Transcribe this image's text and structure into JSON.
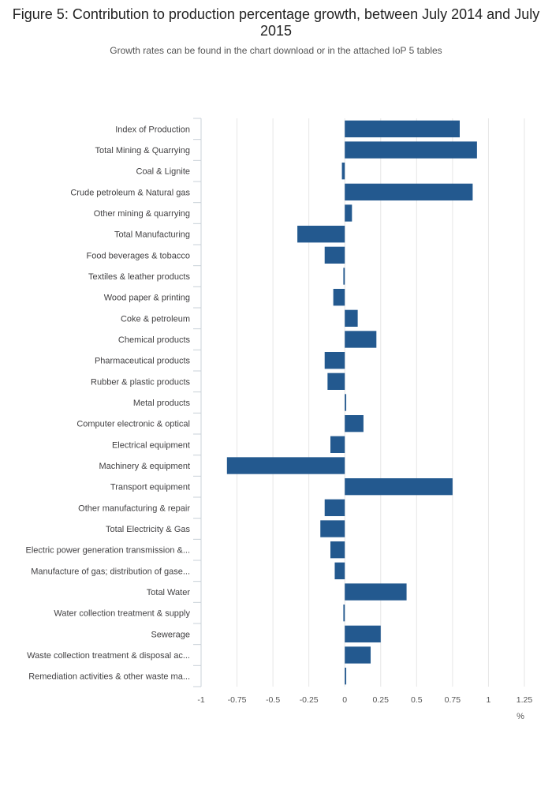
{
  "chart_data": {
    "type": "bar",
    "orientation": "horizontal",
    "title": "Figure 5: Contribution to production percentage growth, between July 2014 and July 2015",
    "subtitle": "Growth rates can be found in the chart download or in the attached IoP 5 tables",
    "xlabel": "%",
    "ylabel": "",
    "xlim": [
      -1,
      1.25
    ],
    "xticks": [
      -1,
      -0.75,
      -0.5,
      -0.25,
      0,
      0.25,
      0.5,
      0.75,
      1,
      1.25
    ],
    "xtick_labels": [
      "-1",
      "-0.75",
      "-0.5",
      "-0.25",
      "0",
      "0.25",
      "0.5",
      "0.75",
      "1",
      "1.25"
    ],
    "grid": true,
    "bar_color": "#23598f",
    "categories": [
      "Index of Production",
      "Total Mining & Quarrying",
      "Coal & Lignite",
      "Crude petroleum & Natural gas",
      "Other mining & quarrying",
      "Total Manufacturing",
      "Food beverages & tobacco",
      "Textiles & leather products",
      "Wood paper & printing",
      "Coke & petroleum",
      "Chemical products",
      "Pharmaceutical products",
      "Rubber & plastic products",
      "Metal products",
      "Computer electronic & optical",
      "Electrical equipment",
      "Machinery & equipment",
      "Transport equipment",
      "Other manufacturing & repair",
      "Total Electricity & Gas",
      "Electric power generation transmission &...",
      "Manufacture of gas; distribution of gase...",
      "Total Water",
      "Water collection treatment & supply",
      "Sewerage",
      "Waste collection treatment & disposal ac...",
      "Remediation activities & other waste ma..."
    ],
    "values": [
      0.8,
      0.92,
      -0.02,
      0.89,
      0.05,
      -0.33,
      -0.14,
      -0.01,
      -0.08,
      0.09,
      0.22,
      -0.14,
      -0.12,
      0.01,
      0.13,
      -0.1,
      -0.82,
      0.75,
      -0.14,
      -0.17,
      -0.1,
      -0.07,
      0.43,
      -0.01,
      0.25,
      0.18,
      0.01
    ]
  }
}
